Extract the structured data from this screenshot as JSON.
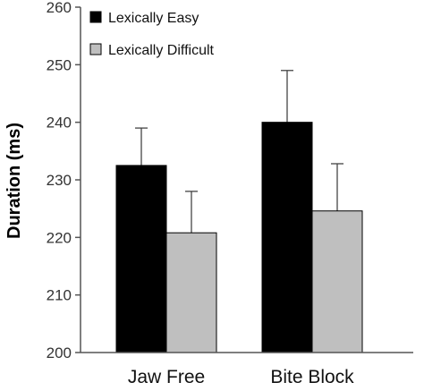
{
  "chart_data": {
    "type": "bar",
    "title": "",
    "xlabel": "",
    "ylabel": "Duration (ms)",
    "ylim": [
      200,
      260
    ],
    "yticks": [
      200,
      210,
      220,
      230,
      240,
      250,
      260
    ],
    "categories": [
      "Jaw Free",
      "Bite Block"
    ],
    "series": [
      {
        "name": "Lexically Easy",
        "color": "#000000",
        "values": [
          232.5,
          240.0
        ],
        "error": [
          6.5,
          9.0
        ]
      },
      {
        "name": "Lexically Difficult",
        "color": "#bfbfbf",
        "values": [
          220.8,
          224.6
        ],
        "error": [
          7.2,
          8.2
        ]
      }
    ],
    "legend_position": "top-left",
    "grid": false
  }
}
